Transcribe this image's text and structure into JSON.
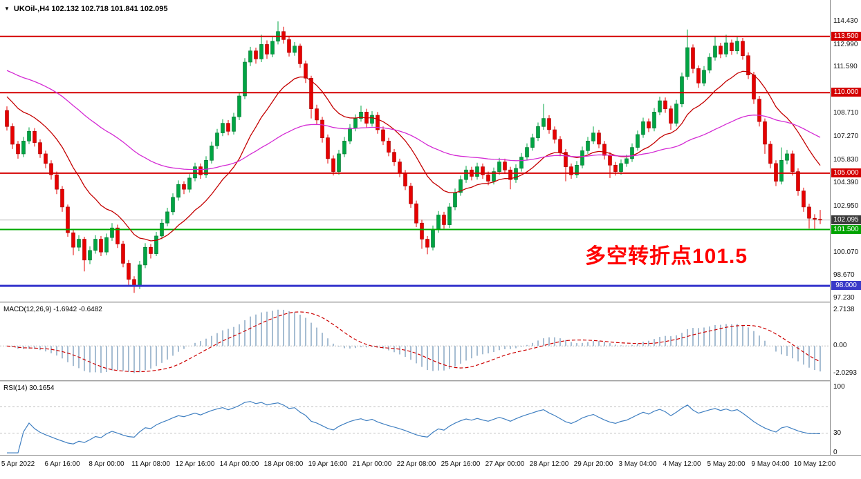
{
  "header": {
    "info_line": "UKOil-,H4 102.132 102.718 101.841 102.095"
  },
  "macd": {
    "label": "MACD(12,26,9) -1.6942 -0.6482"
  },
  "rsi": {
    "label": "RSI(14) 30.1654"
  },
  "chart_data": {
    "type": "candlestick",
    "symbol": "UKOil-",
    "timeframe": "H4",
    "current_bar": {
      "open": 102.132,
      "high": 102.718,
      "low": 101.841,
      "close": 102.095
    },
    "ylim": [
      97.02,
      115.76
    ],
    "price_axis_labels": [
      "114.430",
      "112.990",
      "111.590",
      "108.710",
      "107.270",
      "105.830",
      "104.390",
      "102.950",
      "100.070",
      "98.670",
      "97.230"
    ],
    "axis_badges": [
      {
        "label": "113.500",
        "value": 113.5,
        "bg": "#d40000"
      },
      {
        "label": "110.000",
        "value": 110.0,
        "bg": "#d40000"
      },
      {
        "label": "105.000",
        "value": 105.0,
        "bg": "#d40000"
      },
      {
        "label": "102.095",
        "value": 102.095,
        "bg": "#3b3b3b"
      },
      {
        "label": "101.500",
        "value": 101.5,
        "bg": "#00a400"
      },
      {
        "label": "98.000",
        "value": 98.0,
        "bg": "#3a3ac8"
      }
    ],
    "levels": [
      {
        "value": 113.5,
        "color": "#d40000",
        "width": 2
      },
      {
        "value": 110.0,
        "color": "#d40000",
        "width": 2
      },
      {
        "value": 105.0,
        "color": "#d40000",
        "width": 2
      },
      {
        "value": 101.5,
        "color": "#00a800",
        "width": 2
      },
      {
        "value": 98.0,
        "color": "#3333cc",
        "width": 3
      }
    ],
    "current_price_line": {
      "value": 102.095,
      "color": "#c0c0c0"
    },
    "candle_colors": {
      "up": "#00a443",
      "up_border": "#00702e",
      "down": "#e60000",
      "down_border": "#a30000"
    },
    "moving_averages": [
      {
        "name": "ma-fast-line",
        "type": "ema",
        "period": 16,
        "seed": 110.0,
        "color": "#c40000"
      },
      {
        "name": "ma-slow-line",
        "type": "ema",
        "period": 60,
        "seed": 111.5,
        "color": "#d42bd4"
      }
    ],
    "time_axis_labels": [
      "5 Apr 2022",
      "6 Apr 16:00",
      "8 Apr 00:00",
      "11 Apr 08:00",
      "12 Apr 16:00",
      "14 Apr 00:00",
      "18 Apr 08:00",
      "19 Apr 16:00",
      "21 Apr 00:00",
      "22 Apr 08:00",
      "25 Apr 16:00",
      "27 Apr 00:00",
      "28 Apr 12:00",
      "29 Apr 20:00",
      "3 May 04:00",
      "4 May 12:00",
      "5 May 20:00",
      "9 May 04:00",
      "10 May 12:00"
    ],
    "bars_per_label": 8,
    "first_label_bar_index": 2,
    "annotation": {
      "text": "多空转折点101.5",
      "color": "#ff0000"
    },
    "indicators": {
      "macd": {
        "params": [
          12,
          26,
          9
        ],
        "values": [
          -1.6942,
          -0.6482
        ],
        "ylim": [
          -2.55,
          3.2
        ],
        "axis_labels": [
          "2.7138",
          "0.00",
          "-2.0293"
        ],
        "histogram_color": "#a6bdd2",
        "signal_color": "#cc0000"
      },
      "rsi": {
        "period": 14,
        "value": 30.1654,
        "ylim": [
          -3,
          108
        ],
        "axis_labels": [
          "100",
          "30",
          "0"
        ],
        "levels": [
          70,
          30
        ],
        "line_color": "#3f7fc1"
      }
    },
    "candles": [
      [
        108.9,
        109.15,
        107.65,
        107.9
      ],
      [
        107.9,
        108.1,
        106.5,
        106.8
      ],
      [
        106.8,
        107.0,
        105.9,
        106.2
      ],
      [
        106.2,
        107.25,
        106.0,
        107.0
      ],
      [
        107.0,
        107.85,
        106.8,
        107.6
      ],
      [
        107.6,
        107.8,
        106.65,
        106.9
      ],
      [
        106.9,
        107.1,
        105.95,
        106.2
      ],
      [
        106.2,
        106.4,
        105.3,
        105.6
      ],
      [
        105.6,
        105.8,
        104.6,
        104.9
      ],
      [
        104.9,
        105.1,
        103.7,
        104.0
      ],
      [
        104.0,
        104.2,
        102.6,
        102.9
      ],
      [
        102.9,
        103.05,
        101.05,
        101.3
      ],
      [
        101.3,
        101.5,
        99.9,
        100.4
      ],
      [
        100.4,
        101.15,
        100.15,
        100.9
      ],
      [
        100.9,
        101.05,
        98.9,
        99.6
      ],
      [
        99.6,
        100.45,
        99.35,
        100.2
      ],
      [
        100.2,
        101.15,
        100.0,
        100.9
      ],
      [
        100.9,
        101.1,
        99.85,
        100.1
      ],
      [
        100.1,
        101.25,
        99.9,
        101.0
      ],
      [
        101.0,
        101.9,
        100.8,
        101.6
      ],
      [
        101.6,
        101.8,
        100.35,
        100.6
      ],
      [
        100.6,
        100.8,
        99.15,
        99.4
      ],
      [
        99.4,
        99.6,
        98.05,
        98.4
      ],
      [
        98.4,
        98.6,
        97.57,
        98.0
      ],
      [
        98.0,
        99.55,
        97.8,
        99.3
      ],
      [
        99.3,
        100.65,
        99.1,
        100.4
      ],
      [
        100.4,
        100.6,
        99.7,
        100.0
      ],
      [
        100.0,
        101.35,
        99.85,
        101.1
      ],
      [
        101.1,
        102.15,
        100.9,
        101.9
      ],
      [
        101.9,
        102.85,
        101.7,
        102.6
      ],
      [
        102.6,
        103.75,
        102.4,
        103.5
      ],
      [
        103.5,
        104.55,
        103.3,
        104.3
      ],
      [
        104.3,
        104.5,
        103.7,
        104.0
      ],
      [
        104.0,
        104.95,
        103.8,
        104.7
      ],
      [
        104.7,
        105.65,
        104.5,
        105.4
      ],
      [
        105.4,
        105.6,
        104.65,
        104.9
      ],
      [
        104.9,
        106.05,
        104.7,
        105.8
      ],
      [
        105.8,
        106.95,
        105.6,
        106.7
      ],
      [
        106.7,
        107.75,
        106.5,
        107.5
      ],
      [
        107.5,
        108.35,
        107.3,
        108.1
      ],
      [
        108.1,
        108.3,
        107.35,
        107.6
      ],
      [
        107.6,
        108.75,
        107.4,
        108.5
      ],
      [
        108.5,
        110.05,
        108.3,
        109.8
      ],
      [
        109.8,
        112.15,
        109.6,
        111.9
      ],
      [
        111.9,
        112.85,
        111.65,
        112.6
      ],
      [
        112.6,
        112.8,
        111.8,
        112.1
      ],
      [
        112.1,
        113.6,
        111.9,
        113.0
      ],
      [
        113.0,
        113.25,
        112.1,
        112.4
      ],
      [
        112.4,
        113.45,
        112.2,
        113.2
      ],
      [
        113.2,
        114.43,
        113.0,
        113.8
      ],
      [
        113.8,
        114.1,
        113.05,
        113.3
      ],
      [
        113.3,
        113.5,
        112.25,
        112.5
      ],
      [
        112.5,
        113.15,
        112.3,
        112.9
      ],
      [
        112.9,
        113.05,
        111.55,
        111.8
      ],
      [
        111.8,
        112.0,
        110.6,
        110.9
      ],
      [
        110.9,
        111.05,
        108.4,
        109.0
      ],
      [
        109.0,
        109.25,
        108.0,
        108.3
      ],
      [
        108.3,
        108.5,
        106.9,
        107.2
      ],
      [
        107.2,
        107.4,
        105.6,
        105.9
      ],
      [
        105.9,
        106.1,
        104.86,
        105.1
      ],
      [
        105.1,
        106.45,
        104.9,
        106.2
      ],
      [
        106.2,
        107.25,
        106.0,
        107.0
      ],
      [
        107.0,
        108.05,
        106.8,
        107.8
      ],
      [
        107.8,
        108.65,
        107.6,
        108.4
      ],
      [
        108.4,
        109.2,
        108.2,
        108.8
      ],
      [
        108.8,
        109.0,
        107.85,
        108.1
      ],
      [
        108.1,
        108.85,
        107.9,
        108.6
      ],
      [
        108.6,
        108.8,
        107.45,
        107.7
      ],
      [
        107.7,
        107.9,
        106.75,
        107.0
      ],
      [
        107.0,
        107.2,
        106.05,
        106.3
      ],
      [
        106.3,
        106.5,
        105.45,
        105.7
      ],
      [
        105.7,
        105.9,
        104.75,
        105.0
      ],
      [
        105.0,
        105.2,
        103.95,
        104.2
      ],
      [
        104.2,
        104.4,
        102.85,
        103.1
      ],
      [
        103.1,
        103.3,
        101.65,
        101.9
      ],
      [
        101.9,
        102.1,
        100.3,
        100.9
      ],
      [
        100.9,
        101.1,
        99.96,
        100.4
      ],
      [
        100.4,
        101.75,
        100.2,
        101.5
      ],
      [
        101.5,
        102.65,
        101.3,
        102.4
      ],
      [
        102.4,
        102.6,
        101.55,
        101.8
      ],
      [
        101.8,
        103.15,
        101.6,
        102.9
      ],
      [
        102.9,
        104.05,
        102.7,
        103.8
      ],
      [
        103.8,
        104.85,
        103.6,
        104.6
      ],
      [
        104.6,
        105.45,
        104.4,
        105.2
      ],
      [
        105.2,
        105.4,
        104.55,
        104.8
      ],
      [
        104.8,
        105.65,
        104.6,
        105.4
      ],
      [
        105.4,
        105.6,
        104.65,
        104.9
      ],
      [
        104.9,
        105.1,
        104.25,
        104.5
      ],
      [
        104.5,
        105.35,
        104.3,
        105.1
      ],
      [
        105.1,
        105.95,
        104.9,
        105.7
      ],
      [
        105.7,
        105.9,
        104.95,
        105.2
      ],
      [
        105.2,
        105.4,
        104.0,
        104.6
      ],
      [
        104.6,
        105.55,
        104.4,
        105.3
      ],
      [
        105.3,
        106.25,
        105.1,
        106.0
      ],
      [
        106.0,
        106.85,
        105.8,
        106.6
      ],
      [
        106.6,
        107.45,
        106.4,
        107.2
      ],
      [
        107.2,
        108.15,
        107.0,
        107.9
      ],
      [
        107.9,
        109.3,
        107.7,
        108.4
      ],
      [
        108.4,
        108.6,
        107.45,
        107.7
      ],
      [
        107.7,
        107.9,
        106.85,
        107.1
      ],
      [
        107.1,
        107.3,
        106.05,
        106.3
      ],
      [
        106.3,
        106.5,
        104.5,
        105.4
      ],
      [
        105.4,
        105.6,
        104.65,
        104.9
      ],
      [
        104.9,
        105.75,
        104.7,
        105.5
      ],
      [
        105.5,
        106.65,
        105.3,
        106.4
      ],
      [
        106.4,
        107.25,
        106.2,
        107.0
      ],
      [
        107.0,
        107.9,
        106.8,
        107.5
      ],
      [
        107.5,
        107.7,
        106.55,
        106.8
      ],
      [
        106.8,
        107.0,
        105.85,
        106.1
      ],
      [
        106.1,
        106.3,
        104.7,
        105.5
      ],
      [
        105.5,
        105.7,
        104.85,
        105.1
      ],
      [
        105.1,
        105.85,
        104.9,
        105.6
      ],
      [
        105.6,
        106.15,
        105.4,
        105.9
      ],
      [
        105.9,
        106.85,
        105.7,
        106.6
      ],
      [
        106.6,
        107.65,
        106.4,
        107.4
      ],
      [
        107.4,
        108.45,
        107.2,
        108.2
      ],
      [
        108.2,
        108.4,
        107.55,
        107.8
      ],
      [
        107.8,
        109.05,
        107.6,
        108.8
      ],
      [
        108.8,
        109.75,
        108.6,
        109.5
      ],
      [
        109.5,
        109.7,
        108.75,
        109.0
      ],
      [
        109.0,
        109.2,
        107.7,
        108.1
      ],
      [
        108.1,
        109.55,
        107.9,
        109.3
      ],
      [
        109.3,
        111.25,
        109.1,
        111.0
      ],
      [
        111.0,
        113.93,
        110.8,
        112.8
      ],
      [
        112.8,
        113.0,
        111.2,
        111.5
      ],
      [
        111.5,
        111.7,
        110.3,
        110.6
      ],
      [
        110.6,
        111.65,
        110.4,
        111.4
      ],
      [
        111.4,
        112.45,
        111.2,
        112.2
      ],
      [
        112.2,
        113.5,
        112.0,
        112.9
      ],
      [
        112.9,
        113.1,
        112.15,
        112.4
      ],
      [
        112.4,
        113.6,
        112.2,
        113.1
      ],
      [
        113.1,
        113.3,
        112.35,
        112.6
      ],
      [
        112.6,
        113.45,
        112.4,
        113.2
      ],
      [
        113.2,
        113.4,
        112.05,
        112.3
      ],
      [
        112.3,
        112.5,
        110.85,
        111.1
      ],
      [
        111.1,
        111.3,
        109.3,
        109.6
      ],
      [
        109.6,
        109.8,
        107.9,
        108.2
      ],
      [
        108.2,
        108.4,
        106.2,
        106.8
      ],
      [
        106.8,
        107.0,
        105.3,
        105.6
      ],
      [
        105.6,
        105.8,
        104.2,
        104.5
      ],
      [
        104.5,
        106.6,
        104.3,
        105.8
      ],
      [
        105.8,
        106.45,
        105.55,
        106.2
      ],
      [
        106.2,
        106.4,
        104.85,
        105.1
      ],
      [
        105.1,
        105.3,
        103.6,
        103.9
      ],
      [
        103.9,
        104.1,
        102.6,
        102.9
      ],
      [
        102.9,
        103.1,
        101.56,
        102.2
      ],
      [
        102.2,
        102.45,
        101.52,
        102.13
      ],
      [
        102.132,
        102.718,
        101.841,
        102.095
      ]
    ]
  }
}
